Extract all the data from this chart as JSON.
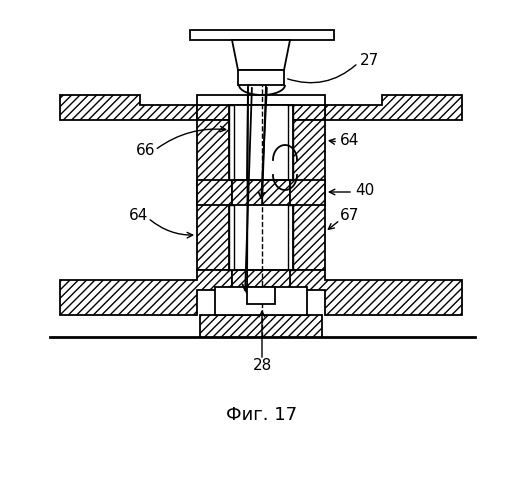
{
  "title": "Фиг. 17",
  "title_fontsize": 13,
  "bg_color": "#ffffff",
  "line_color": "#000000",
  "hatch_pattern": "////",
  "figsize": [
    5.25,
    5.0
  ],
  "dpi": 100
}
